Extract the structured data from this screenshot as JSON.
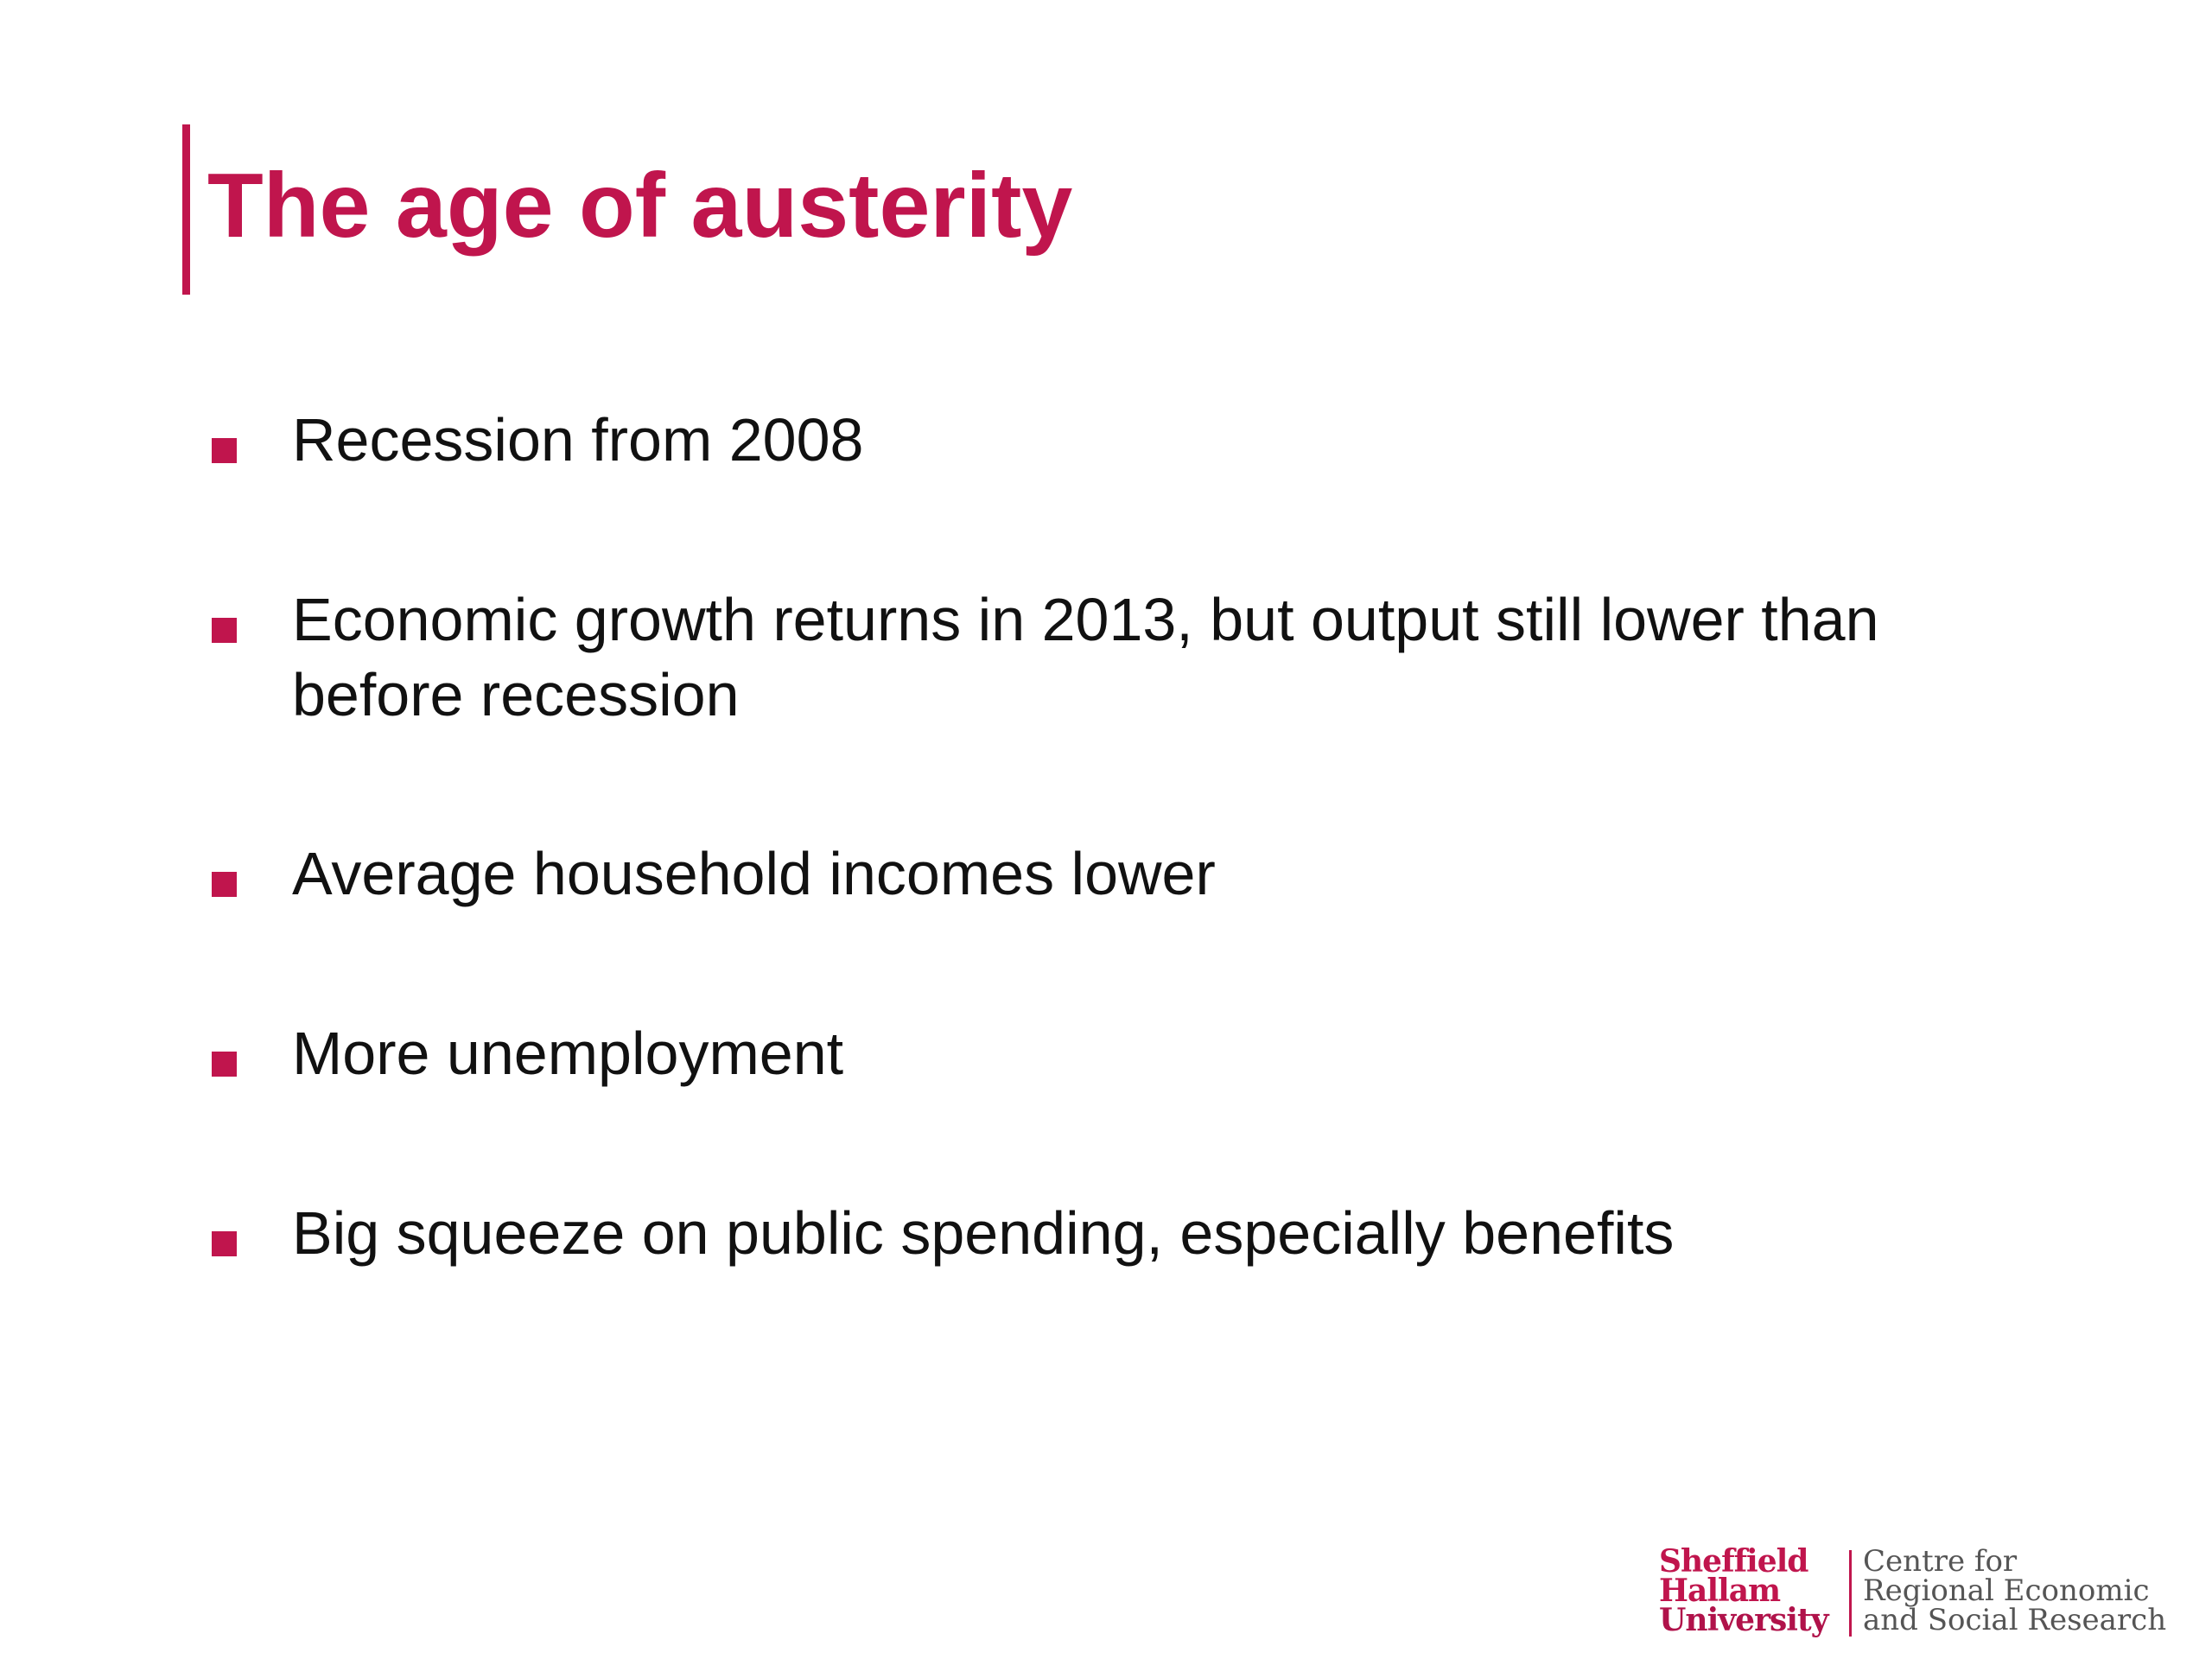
{
  "slide": {
    "title": "The age of austerity",
    "bullets": [
      {
        "text": "Recession from 2008"
      },
      {
        "text": "Economic growth returns in 2013, but output still lower than before recession"
      },
      {
        "text": "Average household incomes lower"
      },
      {
        "text": "More unemployment"
      },
      {
        "text": "Big squeeze on public spending, especially benefits"
      }
    ]
  },
  "logo": {
    "university_lines": [
      "Sheffield",
      "Hallam",
      "University"
    ],
    "centre_lines": [
      "Centre for",
      "Regional Economic",
      "and Social Research"
    ]
  },
  "colors": {
    "accent": "#c0154d",
    "text": "#111111",
    "background": "#ffffff"
  }
}
